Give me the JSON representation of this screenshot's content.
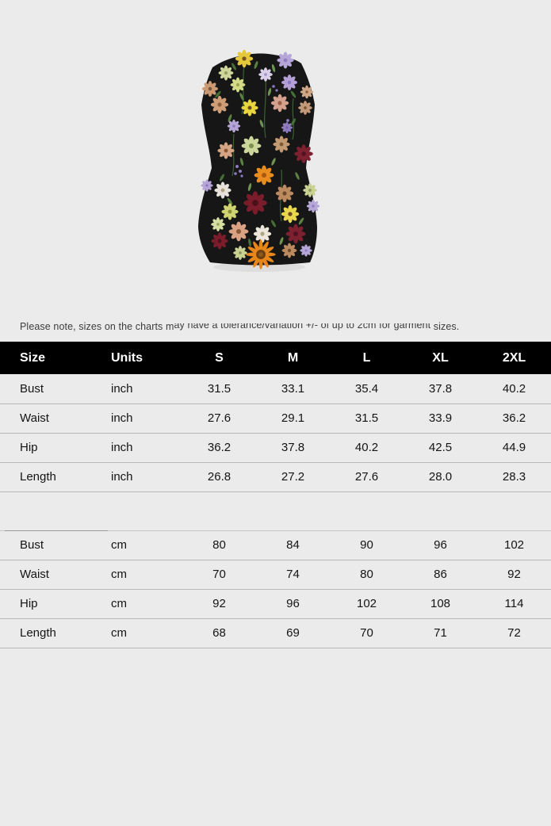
{
  "note": {
    "full_text": "Please note, sizes on the charts may have a tolerance/variation +/- of up to 2cm for garment sizes.",
    "prefix": "Please note, sizes on the charts m",
    "clipped_middle": "ay have a tolerance/variation +/- of up to 2cm for garment",
    "suffix": " sizes."
  },
  "size_chart": {
    "columns": [
      "Size",
      "Units",
      "S",
      "M",
      "L",
      "XL",
      "2XL"
    ],
    "sections": [
      {
        "name": "inch",
        "rows": [
          {
            "label": "Bust",
            "unit": "inch",
            "values": [
              "31.5",
              "33.1",
              "35.4",
              "37.8",
              "40.2"
            ]
          },
          {
            "label": "Waist",
            "unit": "inch",
            "values": [
              "27.6",
              "29.1",
              "31.5",
              "33.9",
              "36.2"
            ]
          },
          {
            "label": "Hip",
            "unit": "inch",
            "values": [
              "36.2",
              "37.8",
              "40.2",
              "42.5",
              "44.9"
            ]
          },
          {
            "label": "Length",
            "unit": "inch",
            "values": [
              "26.8",
              "27.2",
              "27.6",
              "28.0",
              "28.3"
            ]
          }
        ]
      },
      {
        "name": "cm",
        "rows": [
          {
            "label": "Bust",
            "unit": "cm",
            "values": [
              "80",
              "84",
              "90",
              "96",
              "102"
            ]
          },
          {
            "label": "Waist",
            "unit": "cm",
            "values": [
              "70",
              "74",
              "80",
              "86",
              "92"
            ]
          },
          {
            "label": "Hip",
            "unit": "cm",
            "values": [
              "92",
              "96",
              "102",
              "108",
              "114"
            ]
          },
          {
            "label": "Length",
            "unit": "cm",
            "values": [
              "68",
              "69",
              "70",
              "71",
              "72"
            ]
          }
        ]
      }
    ]
  },
  "colors": {
    "page_bg": "#ebebeb",
    "header_bg": "#000000",
    "header_text": "#ffffff",
    "body_text": "#141414",
    "row_border": "#b7b7b7"
  }
}
